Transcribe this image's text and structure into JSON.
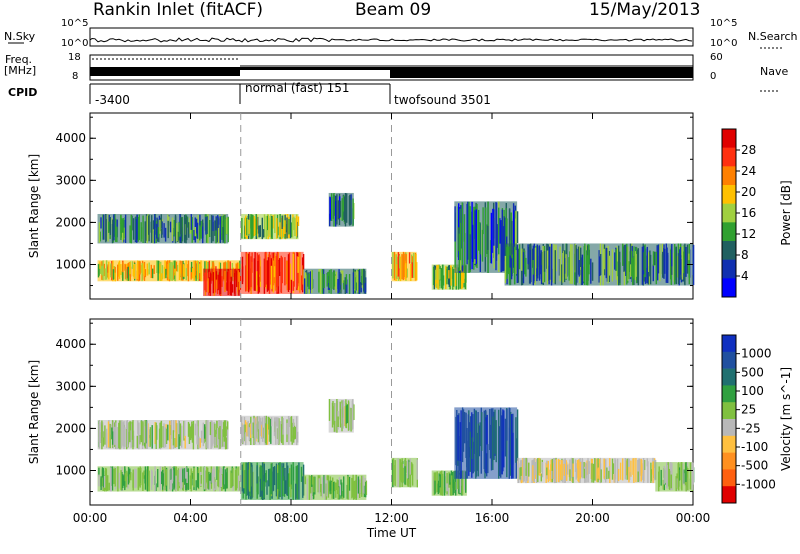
{
  "header": {
    "station": "Rankin Inlet (fitACF)",
    "beam": "Beam 09",
    "date": "15/May/2013"
  },
  "summary": {
    "nsky_label": "N.Sky",
    "nsearch_label": "N.Search",
    "freq_label": "Freq.",
    "freq_unit": "[MHz]",
    "nave_label": "Nave",
    "cpid_label": "CPID",
    "nsky_ticks": [
      "10^5",
      "10^0"
    ],
    "freq_ticks": [
      "18",
      "8"
    ],
    "nave_ticks": [
      "60",
      "0"
    ]
  },
  "cpid": [
    {
      "label": "-3400",
      "start": "00:00",
      "end": "06:00"
    },
    {
      "label": "normal (fast) 151",
      "start": "06:00",
      "end": "12:00"
    },
    {
      "label": "twofsound 3501",
      "start": "12:00",
      "end": "24:00"
    }
  ],
  "chart_data": [
    {
      "type": "heatmap",
      "parameter": "Power",
      "colorbar_label": "Power [dB]",
      "colorbar_ticks": [
        "28",
        "24",
        "20",
        "16",
        "12",
        "8",
        "4"
      ],
      "colorbar_colors": [
        "#e00000",
        "#ff3010",
        "#ff8000",
        "#ffc000",
        "#a0d040",
        "#30a030",
        "#206060",
        "#1030b0",
        "#0000ff"
      ],
      "xlabel": "Time UT",
      "ylabel": "Slant Range [km]",
      "xticks": [
        "00:00",
        "04:00",
        "08:00",
        "12:00",
        "16:00",
        "20:00",
        "00:00"
      ],
      "yticks": [
        "1000",
        "2000",
        "3000",
        "4000"
      ],
      "xlim": [
        0,
        24
      ],
      "ylim": [
        180,
        4600
      ],
      "mode_boundaries_hours": [
        6,
        12
      ],
      "echo_regions": [
        {
          "t0": 0.3,
          "t1": 6.0,
          "r0": 600,
          "r1": 1100,
          "value": 18
        },
        {
          "t0": 0.3,
          "t1": 5.5,
          "r0": 1500,
          "r1": 2200,
          "value": 10
        },
        {
          "t0": 4.5,
          "t1": 6.0,
          "r0": 250,
          "r1": 900,
          "value": 28
        },
        {
          "t0": 6.0,
          "t1": 8.5,
          "r0": 300,
          "r1": 1300,
          "value": 24
        },
        {
          "t0": 6.0,
          "t1": 8.3,
          "r0": 1600,
          "r1": 2200,
          "value": 14
        },
        {
          "t0": 8.5,
          "t1": 11.0,
          "r0": 300,
          "r1": 900,
          "value": 10
        },
        {
          "t0": 9.5,
          "t1": 10.5,
          "r0": 1900,
          "r1": 2700,
          "value": 8
        },
        {
          "t0": 12.0,
          "t1": 13.0,
          "r0": 600,
          "r1": 1300,
          "value": 20
        },
        {
          "t0": 13.6,
          "t1": 15.0,
          "r0": 400,
          "r1": 1000,
          "value": 14
        },
        {
          "t0": 14.5,
          "t1": 17.0,
          "r0": 800,
          "r1": 2500,
          "value": 8
        },
        {
          "t0": 16.5,
          "t1": 24.0,
          "r0": 500,
          "r1": 1500,
          "value": 10
        }
      ]
    },
    {
      "type": "heatmap",
      "parameter": "Velocity",
      "colorbar_label": "Velocity [m s^-1]",
      "colorbar_ticks": [
        "1000",
        "500",
        "100",
        "25",
        "-25",
        "-100",
        "-500",
        "-1000"
      ],
      "colorbar_colors": [
        "#1030c0",
        "#2050a0",
        "#207070",
        "#30a040",
        "#80c040",
        "#b8b8b8",
        "#ffc040",
        "#ff9020",
        "#ff6010",
        "#e00000"
      ],
      "xlabel": "Time UT",
      "ylabel": "Slant Range [km]",
      "xticks": [
        "00:00",
        "04:00",
        "08:00",
        "12:00",
        "16:00",
        "20:00",
        "00:00"
      ],
      "yticks": [
        "1000",
        "2000",
        "3000",
        "4000"
      ],
      "xlim": [
        0,
        24
      ],
      "ylim": [
        180,
        4600
      ],
      "mode_boundaries_hours": [
        6,
        12
      ],
      "echo_regions": [
        {
          "t0": 0.3,
          "t1": 6.0,
          "r0": 500,
          "r1": 1100,
          "value": 120
        },
        {
          "t0": 0.3,
          "t1": 5.5,
          "r0": 1500,
          "r1": 2200,
          "value": 0
        },
        {
          "t0": 6.0,
          "t1": 8.5,
          "r0": 300,
          "r1": 1200,
          "value": 400
        },
        {
          "t0": 6.0,
          "t1": 8.3,
          "r0": 1600,
          "r1": 2300,
          "value": 0
        },
        {
          "t0": 8.5,
          "t1": 11.0,
          "r0": 300,
          "r1": 900,
          "value": 150
        },
        {
          "t0": 9.5,
          "t1": 10.5,
          "r0": 1900,
          "r1": 2700,
          "value": 0
        },
        {
          "t0": 12.0,
          "t1": 13.0,
          "r0": 600,
          "r1": 1300,
          "value": 80
        },
        {
          "t0": 13.6,
          "t1": 15.0,
          "r0": 400,
          "r1": 1000,
          "value": 120
        },
        {
          "t0": 14.5,
          "t1": 17.0,
          "r0": 800,
          "r1": 2500,
          "value": 700
        },
        {
          "t0": 17.0,
          "t1": 22.5,
          "r0": 700,
          "r1": 1300,
          "value": -150
        },
        {
          "t0": 22.5,
          "t1": 24.0,
          "r0": 500,
          "r1": 1200,
          "value": 60
        }
      ]
    }
  ]
}
